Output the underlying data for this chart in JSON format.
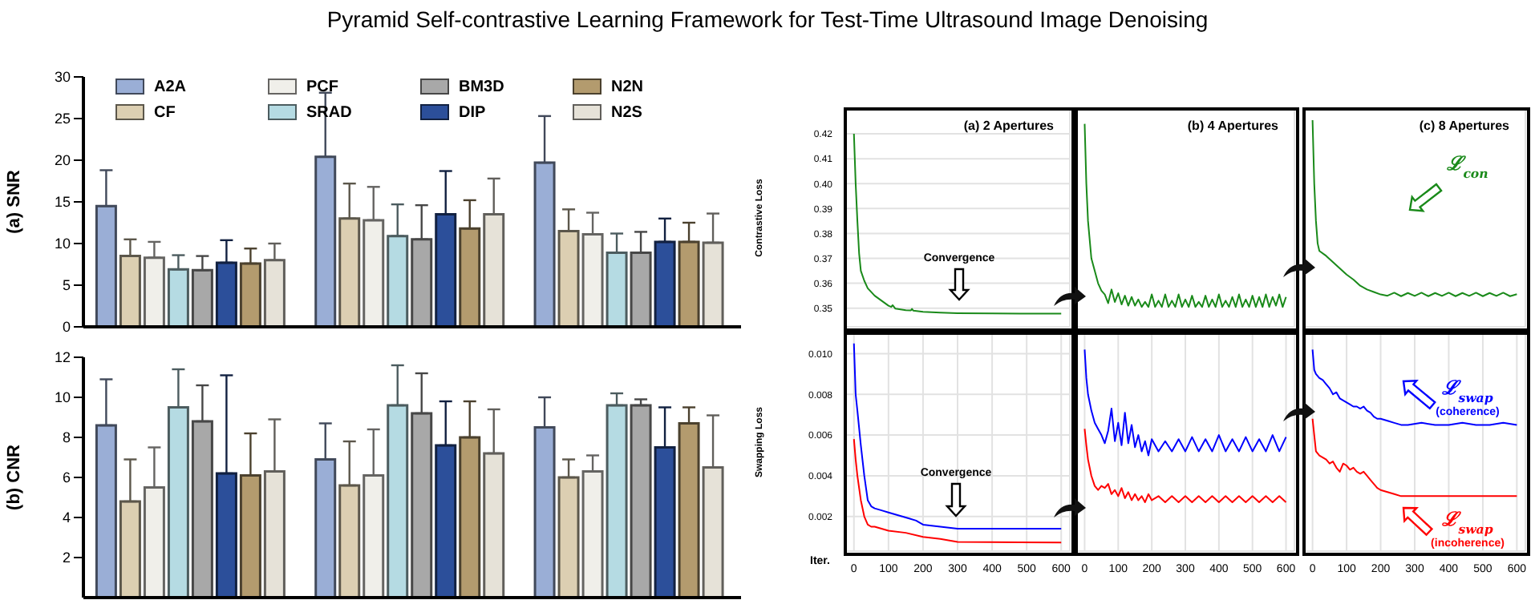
{
  "chart_data": [
    {
      "type": "bar",
      "title": "Pyramid Self-contrastive Learning Framework for Test-Time Ultrasound Image Denoising",
      "ylabel": "(a) SNR",
      "categories": [
        null,
        null,
        null
      ],
      "ylim": [
        0,
        30
      ],
      "yticks": [
        0,
        5,
        10,
        15,
        20,
        25,
        30
      ],
      "legend": "top",
      "series": [
        {
          "name": "A2A",
          "color": "#9aaed6",
          "values": [
            14.5,
            20.4,
            19.7
          ],
          "errors": [
            [
              14.5,
              18.8
            ],
            [
              20.4,
              28.1
            ],
            [
              19.7,
              25.3
            ]
          ]
        },
        {
          "name": "CF",
          "color": "#dccfb2",
          "values": [
            8.5,
            13.0,
            11.5
          ],
          "errors": [
            [
              8.5,
              10.5
            ],
            [
              13.0,
              17.2
            ],
            [
              11.5,
              14.1
            ]
          ]
        },
        {
          "name": "PCF",
          "color": "#f0efea",
          "values": [
            8.3,
            12.8,
            11.1
          ],
          "errors": [
            [
              8.3,
              10.2
            ],
            [
              12.8,
              16.8
            ],
            [
              11.1,
              13.7
            ]
          ]
        },
        {
          "name": "SRAD",
          "color": "#b5dbe3",
          "values": [
            6.9,
            10.9,
            8.9
          ],
          "errors": [
            [
              6.9,
              8.6
            ],
            [
              10.9,
              14.7
            ],
            [
              8.9,
              11.2
            ]
          ]
        },
        {
          "name": "BM3D",
          "color": "#a8a8a8",
          "values": [
            6.8,
            10.5,
            8.9
          ],
          "errors": [
            [
              6.8,
              8.5
            ],
            [
              10.5,
              14.6
            ],
            [
              8.9,
              11.4
            ]
          ]
        },
        {
          "name": "DIP",
          "color": "#2c4f9a",
          "values": [
            7.7,
            13.5,
            10.2
          ],
          "errors": [
            [
              7.7,
              10.4
            ],
            [
              13.5,
              18.7
            ],
            [
              10.2,
              13.0
            ]
          ]
        },
        {
          "name": "N2N",
          "color": "#b39b6e",
          "values": [
            7.6,
            11.8,
            10.2
          ],
          "errors": [
            [
              7.6,
              9.4
            ],
            [
              11.8,
              15.2
            ],
            [
              10.2,
              12.5
            ]
          ]
        },
        {
          "name": "N2S",
          "color": "#e6e2d8",
          "values": [
            8.0,
            13.5,
            10.1
          ],
          "errors": [
            [
              8.0,
              10.0
            ],
            [
              13.5,
              17.8
            ],
            [
              10.1,
              13.6
            ]
          ]
        }
      ]
    },
    {
      "type": "bar",
      "ylabel": "(b) CNR",
      "categories": [
        null,
        null,
        null
      ],
      "ylim": [
        0,
        12
      ],
      "yticks": [
        2,
        4,
        6,
        8,
        10,
        12
      ],
      "series": [
        {
          "color": "#9aaed6",
          "values": [
            8.6,
            6.9,
            8.5
          ],
          "errors": [
            [
              8.6,
              10.9
            ],
            [
              6.9,
              8.7
            ],
            [
              8.5,
              10.0
            ]
          ]
        },
        {
          "color": "#dccfb2",
          "values": [
            4.8,
            5.6,
            6.0
          ],
          "errors": [
            [
              4.8,
              6.9
            ],
            [
              5.6,
              7.8
            ],
            [
              6.0,
              6.9
            ]
          ]
        },
        {
          "color": "#f0efea",
          "values": [
            5.5,
            6.1,
            6.3
          ],
          "errors": [
            [
              5.5,
              7.5
            ],
            [
              6.1,
              8.4
            ],
            [
              6.3,
              7.1
            ]
          ]
        },
        {
          "color": "#b5dbe3",
          "values": [
            9.5,
            9.6,
            9.6
          ],
          "errors": [
            [
              9.5,
              11.4
            ],
            [
              9.6,
              11.6
            ],
            [
              9.6,
              10.2
            ]
          ]
        },
        {
          "color": "#a8a8a8",
          "values": [
            8.8,
            9.2,
            9.6
          ],
          "errors": [
            [
              8.8,
              10.6
            ],
            [
              9.2,
              11.2
            ],
            [
              9.6,
              9.9
            ]
          ]
        },
        {
          "color": "#2c4f9a",
          "values": [
            6.2,
            7.6,
            7.5
          ],
          "errors": [
            [
              6.2,
              11.1
            ],
            [
              7.6,
              9.8
            ],
            [
              7.5,
              9.5
            ]
          ]
        },
        {
          "color": "#b39b6e",
          "values": [
            6.1,
            8.0,
            8.7
          ],
          "errors": [
            [
              6.1,
              8.2
            ],
            [
              8.0,
              9.8
            ],
            [
              8.7,
              9.5
            ]
          ]
        },
        {
          "color": "#e6e2d8",
          "values": [
            6.3,
            7.2,
            6.5
          ],
          "errors": [
            [
              6.3,
              8.9
            ],
            [
              7.2,
              9.4
            ],
            [
              6.5,
              9.1
            ]
          ]
        }
      ]
    },
    {
      "type": "line",
      "ylabel": "Contrastive Loss",
      "xlim": [
        -25,
        625
      ],
      "xticks": [
        0,
        100,
        200,
        300,
        400,
        500,
        600
      ],
      "ylim": [
        0.3425,
        0.43
      ],
      "yticks": [
        0.35,
        0.36,
        0.37,
        0.38,
        0.39,
        {
          "value": 0.4,
          "label": "0.40"
        },
        0.41,
        0.42
      ],
      "grid": true,
      "tick_labels": "y",
      "annotations": [
        "(a) 2 Apertures",
        "Convergence"
      ],
      "series": [
        {
          "color": "#1a8a1a",
          "x": [
            0,
            5,
            10,
            15,
            20,
            30,
            40,
            60,
            80,
            100,
            108,
            112,
            120,
            150,
            165,
            168,
            172,
            200,
            250,
            300,
            400,
            500,
            600
          ],
          "values": [
            0.42,
            0.4,
            0.385,
            0.372,
            0.365,
            0.361,
            0.358,
            0.355,
            0.353,
            0.351,
            0.3505,
            0.3512,
            0.3498,
            0.3492,
            0.3491,
            0.3497,
            0.349,
            0.3485,
            0.3482,
            0.348,
            0.3479,
            0.3478,
            0.3478
          ]
        }
      ]
    },
    {
      "type": "line",
      "xlim": [
        -25,
        625
      ],
      "xticks": [
        0,
        100,
        200,
        300,
        400,
        500,
        600
      ],
      "ylim": [
        0.3425,
        0.43
      ],
      "yticks": [
        0.35,
        0.36,
        0.37,
        0.38,
        0.39,
        0.4,
        0.41,
        0.42
      ],
      "grid": true,
      "tick_labels": false,
      "annotations": [
        "(b) 4 Apertures"
      ],
      "series": [
        {
          "color": "#1a8a1a",
          "x": [
            0,
            5,
            10,
            20,
            30,
            40,
            50,
            60,
            70,
            80,
            90,
            100,
            110,
            120,
            130,
            140,
            150,
            160,
            170,
            180,
            190,
            200,
            210,
            220,
            230,
            240,
            250,
            260,
            270,
            280,
            290,
            300,
            310,
            320,
            330,
            340,
            350,
            360,
            370,
            380,
            390,
            400,
            410,
            420,
            430,
            440,
            450,
            460,
            470,
            480,
            490,
            500,
            510,
            520,
            530,
            540,
            550,
            560,
            570,
            580,
            590,
            600
          ],
          "values": [
            0.424,
            0.4,
            0.385,
            0.37,
            0.365,
            0.36,
            0.357,
            0.3555,
            0.352,
            0.3575,
            0.3525,
            0.356,
            0.3515,
            0.355,
            0.351,
            0.3545,
            0.351,
            0.3535,
            0.3505,
            0.3525,
            0.3505,
            0.3555,
            0.3505,
            0.353,
            0.3505,
            0.3555,
            0.3505,
            0.353,
            0.3505,
            0.3555,
            0.3505,
            0.3535,
            0.3505,
            0.355,
            0.3505,
            0.3525,
            0.3505,
            0.355,
            0.3505,
            0.3535,
            0.3505,
            0.3555,
            0.3505,
            0.353,
            0.3505,
            0.3545,
            0.3505,
            0.3555,
            0.3505,
            0.3535,
            0.3505,
            0.355,
            0.3505,
            0.3545,
            0.3505,
            0.3555,
            0.3505,
            0.3545,
            0.351,
            0.3555,
            0.3505,
            0.3545
          ]
        }
      ]
    },
    {
      "type": "line",
      "xlim": [
        -25,
        625
      ],
      "xticks": [
        0,
        100,
        200,
        300,
        400,
        500,
        600
      ],
      "ylim": [
        0.3425,
        0.43
      ],
      "yticks": [
        0.35,
        0.36,
        0.37,
        0.38,
        0.39,
        0.4,
        0.41,
        0.42
      ],
      "grid": true,
      "tick_labels": false,
      "annotations": [
        "(c) 8 Apertures",
        "ℒ$_{con}$"
      ],
      "series": [
        {
          "color": "#1a8a1a",
          "x": [
            0,
            5,
            10,
            15,
            20,
            40,
            60,
            80,
            100,
            120,
            140,
            160,
            180,
            200,
            220,
            240,
            260,
            280,
            300,
            320,
            340,
            360,
            380,
            400,
            420,
            440,
            460,
            480,
            500,
            520,
            540,
            560,
            580,
            600
          ],
          "values": [
            0.4255,
            0.4,
            0.385,
            0.376,
            0.373,
            0.371,
            0.3685,
            0.366,
            0.3635,
            0.3615,
            0.359,
            0.3575,
            0.3565,
            0.3555,
            0.355,
            0.3562,
            0.3548,
            0.3561,
            0.3549,
            0.3562,
            0.3548,
            0.3561,
            0.3549,
            0.3562,
            0.3548,
            0.3561,
            0.3549,
            0.3562,
            0.3548,
            0.3561,
            0.3549,
            0.3562,
            0.3548,
            0.3556
          ]
        }
      ]
    },
    {
      "type": "line",
      "ylabel": "Swapping Loss",
      "xlabel": "Iter.",
      "xlim": [
        -25,
        625
      ],
      "xticks": [
        0,
        100,
        200,
        300,
        400,
        500,
        600
      ],
      "ylim": [
        0.0003,
        0.011
      ],
      "yticks": [
        0.002,
        0.004,
        0.006,
        0.008,
        {
          "value": 0.01,
          "label": "0.010"
        }
      ],
      "grid": true,
      "annotations": [
        "Convergence"
      ],
      "series": [
        {
          "color": "#0000ff",
          "x": [
            0,
            5,
            10,
            20,
            30,
            40,
            50,
            60,
            80,
            100,
            120,
            160,
            180,
            200,
            250,
            300,
            400,
            600
          ],
          "values": [
            0.0105,
            0.008,
            0.0072,
            0.0055,
            0.004,
            0.0028,
            0.0025,
            0.0024,
            0.0023,
            0.0022,
            0.0021,
            0.0019,
            0.0018,
            0.0016,
            0.0015,
            0.0014,
            0.0014,
            0.0014
          ]
        },
        {
          "color": "#ff0000",
          "x": [
            0,
            5,
            10,
            20,
            30,
            40,
            50,
            60,
            80,
            100,
            150,
            200,
            250,
            300,
            600
          ],
          "values": [
            0.0058,
            0.0048,
            0.004,
            0.0028,
            0.002,
            0.0016,
            0.0015,
            0.0015,
            0.0014,
            0.0013,
            0.0012,
            0.001,
            0.0009,
            0.00075,
            0.00072
          ]
        }
      ]
    },
    {
      "type": "line",
      "xlim": [
        -25,
        625
      ],
      "xticks": [
        0,
        100,
        200,
        300,
        400,
        500,
        600
      ],
      "ylim": [
        0.0003,
        0.011
      ],
      "yticks": [
        0.002,
        0.004,
        0.006,
        0.008,
        0.01
      ],
      "grid": true,
      "tick_labels": "x",
      "series": [
        {
          "color": "#0000ff",
          "x": [
            0,
            5,
            10,
            20,
            30,
            40,
            50,
            60,
            70,
            80,
            90,
            100,
            110,
            120,
            130,
            140,
            150,
            160,
            170,
            180,
            190,
            200,
            220,
            240,
            260,
            280,
            300,
            320,
            340,
            360,
            380,
            400,
            420,
            440,
            460,
            480,
            500,
            520,
            540,
            560,
            580,
            600
          ],
          "values": [
            0.0102,
            0.0088,
            0.008,
            0.0072,
            0.0066,
            0.0063,
            0.006,
            0.0056,
            0.0062,
            0.0073,
            0.0057,
            0.0066,
            0.0055,
            0.0071,
            0.0056,
            0.0065,
            0.0054,
            0.006,
            0.0052,
            0.0057,
            0.005,
            0.0058,
            0.0052,
            0.0057,
            0.0052,
            0.0058,
            0.0052,
            0.0059,
            0.0052,
            0.0058,
            0.0052,
            0.006,
            0.0052,
            0.0058,
            0.0052,
            0.0059,
            0.0052,
            0.0058,
            0.0052,
            0.006,
            0.0052,
            0.0059
          ]
        },
        {
          "color": "#ff0000",
          "x": [
            0,
            5,
            10,
            20,
            30,
            40,
            50,
            60,
            70,
            80,
            90,
            100,
            110,
            120,
            130,
            140,
            150,
            160,
            170,
            180,
            190,
            200,
            220,
            240,
            260,
            280,
            300,
            320,
            340,
            360,
            380,
            400,
            420,
            440,
            460,
            480,
            500,
            520,
            540,
            560,
            580,
            600
          ],
          "values": [
            0.0063,
            0.0055,
            0.0048,
            0.004,
            0.0035,
            0.0033,
            0.0035,
            0.0034,
            0.0036,
            0.0031,
            0.0033,
            0.003,
            0.0034,
            0.0029,
            0.0032,
            0.0028,
            0.0031,
            0.0028,
            0.003,
            0.0027,
            0.0031,
            0.0028,
            0.003,
            0.0027,
            0.003,
            0.0027,
            0.003,
            0.0027,
            0.003,
            0.0027,
            0.003,
            0.0027,
            0.003,
            0.0027,
            0.003,
            0.0027,
            0.003,
            0.0027,
            0.003,
            0.0027,
            0.003,
            0.0027
          ]
        }
      ]
    },
    {
      "type": "line",
      "xlim": [
        -25,
        625
      ],
      "xticks": [
        0,
        100,
        200,
        300,
        400,
        500,
        600
      ],
      "ylim": [
        0.0003,
        0.011
      ],
      "yticks": [
        0.002,
        0.004,
        0.006,
        0.008,
        0.01
      ],
      "grid": true,
      "tick_labels": "x",
      "annotations": [
        "ℒ$_{swap}$\n(coherence)",
        "ℒ$_{swap}$\n(incoherence)"
      ],
      "series": [
        {
          "color": "#0000ff",
          "x": [
            0,
            5,
            10,
            20,
            30,
            40,
            50,
            60,
            70,
            80,
            90,
            100,
            110,
            120,
            130,
            140,
            150,
            160,
            170,
            180,
            190,
            200,
            220,
            240,
            260,
            280,
            320,
            360,
            400,
            440,
            480,
            520,
            560,
            600
          ],
          "values": [
            0.0102,
            0.0092,
            0.009,
            0.0088,
            0.0087,
            0.0085,
            0.0083,
            0.008,
            0.0081,
            0.0078,
            0.0077,
            0.0076,
            0.0075,
            0.0074,
            0.0074,
            0.0073,
            0.0074,
            0.0072,
            0.0071,
            0.0069,
            0.0068,
            0.0068,
            0.0067,
            0.0066,
            0.0065,
            0.0065,
            0.0066,
            0.0065,
            0.0065,
            0.0066,
            0.0065,
            0.0065,
            0.0066,
            0.0065
          ]
        },
        {
          "color": "#ff0000",
          "x": [
            0,
            5,
            10,
            20,
            30,
            40,
            50,
            60,
            70,
            80,
            90,
            100,
            110,
            120,
            130,
            140,
            150,
            160,
            170,
            180,
            190,
            200,
            220,
            240,
            260,
            280,
            320,
            360,
            400,
            440,
            480,
            520,
            560,
            600
          ],
          "values": [
            0.0068,
            0.006,
            0.0052,
            0.005,
            0.0049,
            0.0048,
            0.0046,
            0.0047,
            0.0044,
            0.0042,
            0.0046,
            0.0045,
            0.0043,
            0.0044,
            0.0042,
            0.0041,
            0.0042,
            0.004,
            0.0038,
            0.0036,
            0.0034,
            0.0033,
            0.0032,
            0.0031,
            0.003,
            0.003,
            0.003,
            0.003,
            0.003,
            0.003,
            0.003,
            0.003,
            0.003,
            0.003
          ]
        }
      ]
    }
  ]
}
